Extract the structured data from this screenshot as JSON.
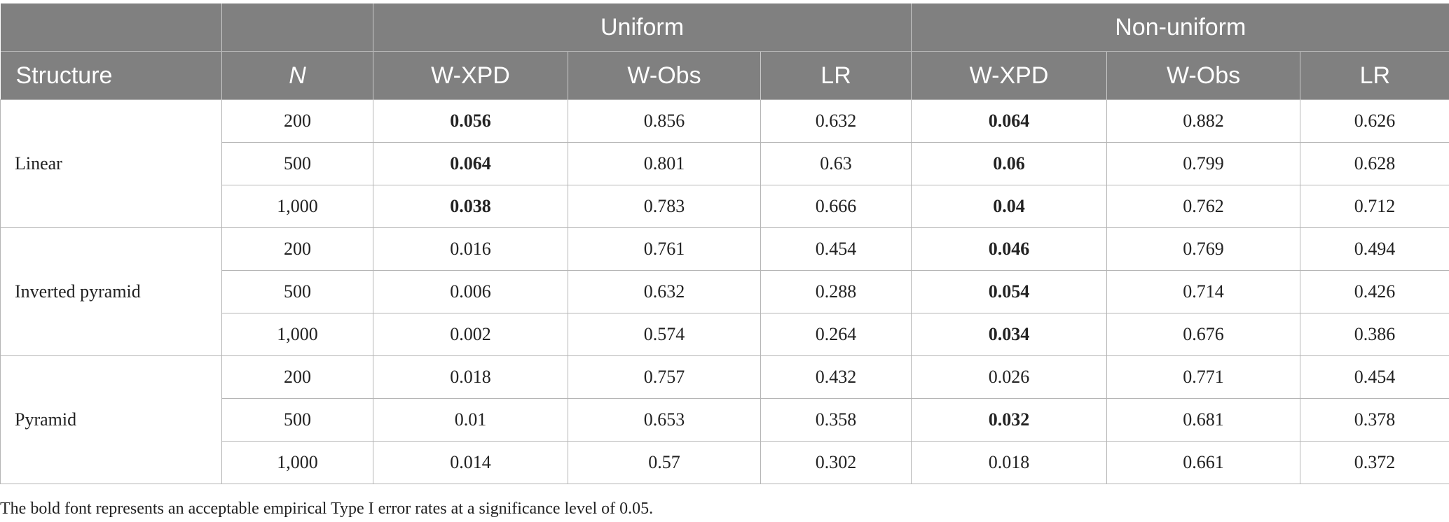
{
  "table": {
    "group_headers": {
      "blank1": "",
      "blank2": "",
      "uniform": "Uniform",
      "non_uniform": "Non-uniform"
    },
    "column_headers": [
      "Structure",
      "N",
      "W-XPD",
      "W-Obs",
      "LR",
      "W-XPD",
      "W-Obs",
      "LR"
    ],
    "groups": [
      {
        "structure": "Linear",
        "rows": [
          {
            "n": "200",
            "cells": [
              "0.056",
              "0.856",
              "0.632",
              "0.064",
              "0.882",
              "0.626"
            ],
            "bold": [
              true,
              false,
              false,
              true,
              false,
              false
            ]
          },
          {
            "n": "500",
            "cells": [
              "0.064",
              "0.801",
              "0.63",
              "0.06",
              "0.799",
              "0.628"
            ],
            "bold": [
              true,
              false,
              false,
              true,
              false,
              false
            ]
          },
          {
            "n": "1,000",
            "cells": [
              "0.038",
              "0.783",
              "0.666",
              "0.04",
              "0.762",
              "0.712"
            ],
            "bold": [
              true,
              false,
              false,
              true,
              false,
              false
            ]
          }
        ]
      },
      {
        "structure": "Inverted pyramid",
        "rows": [
          {
            "n": "200",
            "cells": [
              "0.016",
              "0.761",
              "0.454",
              "0.046",
              "0.769",
              "0.494"
            ],
            "bold": [
              false,
              false,
              false,
              true,
              false,
              false
            ]
          },
          {
            "n": "500",
            "cells": [
              "0.006",
              "0.632",
              "0.288",
              "0.054",
              "0.714",
              "0.426"
            ],
            "bold": [
              false,
              false,
              false,
              true,
              false,
              false
            ]
          },
          {
            "n": "1,000",
            "cells": [
              "0.002",
              "0.574",
              "0.264",
              "0.034",
              "0.676",
              "0.386"
            ],
            "bold": [
              false,
              false,
              false,
              true,
              false,
              false
            ]
          }
        ]
      },
      {
        "structure": "Pyramid",
        "rows": [
          {
            "n": "200",
            "cells": [
              "0.018",
              "0.757",
              "0.432",
              "0.026",
              "0.771",
              "0.454"
            ],
            "bold": [
              false,
              false,
              false,
              false,
              false,
              false
            ]
          },
          {
            "n": "500",
            "cells": [
              "0.01",
              "0.653",
              "0.358",
              "0.032",
              "0.681",
              "0.378"
            ],
            "bold": [
              false,
              false,
              false,
              true,
              false,
              false
            ]
          },
          {
            "n": "1,000",
            "cells": [
              "0.014",
              "0.57",
              "0.302",
              "0.018",
              "0.661",
              "0.372"
            ],
            "bold": [
              false,
              false,
              false,
              false,
              false,
              false
            ]
          }
        ]
      }
    ]
  },
  "footnote": "The bold font represents an acceptable empirical Type I error rates at a significance level of 0.05.",
  "colors": {
    "header_bg": "#808080",
    "header_text": "#ffffff",
    "grid": "#b5b5b5"
  }
}
